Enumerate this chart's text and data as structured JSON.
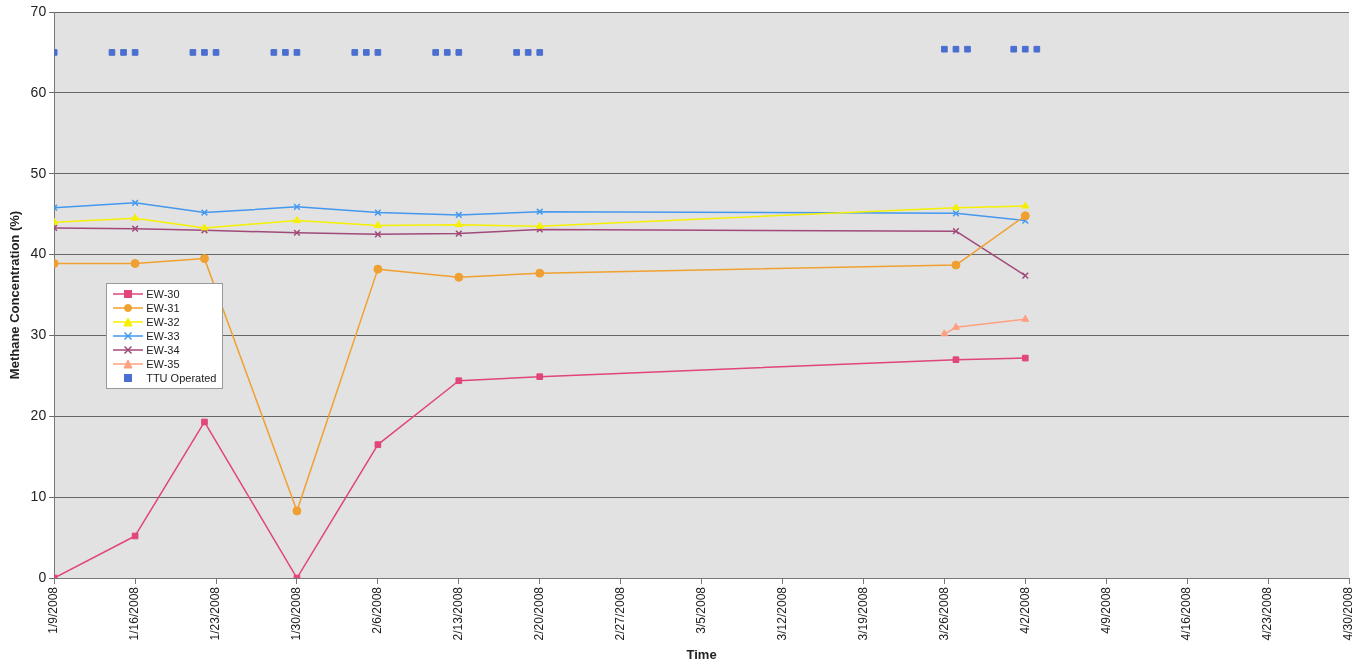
{
  "chart_data": {
    "type": "line",
    "xlabel": "Time",
    "ylabel": "Methane Concentration (%)",
    "xlim": [
      "2008-01-09",
      "2008-04-30"
    ],
    "xticks": [
      {
        "value": "2008-01-09",
        "label": "1/9/2008"
      },
      {
        "value": "2008-01-16",
        "label": "1/16/2008"
      },
      {
        "value": "2008-01-23",
        "label": "1/23/2008"
      },
      {
        "value": "2008-01-30",
        "label": "1/30/2008"
      },
      {
        "value": "2008-02-06",
        "label": "2/6/2008"
      },
      {
        "value": "2008-02-13",
        "label": "2/13/2008"
      },
      {
        "value": "2008-02-20",
        "label": "2/20/2008"
      },
      {
        "value": "2008-02-27",
        "label": "2/27/2008"
      },
      {
        "value": "2008-03-05",
        "label": "3/5/2008"
      },
      {
        "value": "2008-03-12",
        "label": "3/12/2008"
      },
      {
        "value": "2008-03-19",
        "label": "3/19/2008"
      },
      {
        "value": "2008-03-26",
        "label": "3/26/2008"
      },
      {
        "value": "2008-04-02",
        "label": "4/2/2008"
      },
      {
        "value": "2008-04-09",
        "label": "4/9/2008"
      },
      {
        "value": "2008-04-16",
        "label": "4/16/2008"
      },
      {
        "value": "2008-04-23",
        "label": "4/23/2008"
      },
      {
        "value": "2008-04-30",
        "label": "4/30/2008"
      }
    ],
    "ylim": [
      0,
      70
    ],
    "yticks": [
      0,
      10,
      20,
      30,
      40,
      50,
      60,
      70
    ],
    "grid": "y",
    "legend": "left",
    "line_style": "solid",
    "x": [
      "2008-01-09",
      "2008-01-16",
      "2008-01-22",
      "2008-01-30",
      "2008-02-06",
      "2008-02-13",
      "2008-02-20",
      "2008-03-27",
      "2008-04-02"
    ],
    "series": [
      {
        "name": "EW-30",
        "color": "#e0457b",
        "marker": "square",
        "values": [
          0,
          5.2,
          19.3,
          0,
          16.5,
          24.4,
          24.9,
          27,
          27.2
        ]
      },
      {
        "name": "EW-31",
        "color": "#f0a030",
        "marker": "circle",
        "values": [
          38.9,
          38.9,
          39.5,
          8.3,
          38.2,
          37.2,
          37.7,
          38.7,
          44.8
        ]
      },
      {
        "name": "EW-32",
        "color": "#f5f000",
        "marker": "triangle",
        "values": [
          44,
          44.5,
          43.3,
          44.2,
          43.6,
          43.7,
          43.5,
          45.8,
          46
        ]
      },
      {
        "name": "EW-33",
        "color": "#4499ee",
        "marker": "cross",
        "values": [
          45.8,
          46.4,
          45.2,
          45.9,
          45.2,
          44.9,
          45.3,
          45.1,
          44.2
        ]
      },
      {
        "name": "EW-34",
        "color": "#a04a7a",
        "marker": "cross",
        "values": [
          43.3,
          43.2,
          43,
          42.7,
          42.5,
          42.6,
          43.1,
          42.9,
          37.4
        ]
      },
      {
        "name": "EW-35",
        "color": "#ffa080",
        "marker": "triangle",
        "x": [
          "2008-03-26",
          "2008-03-27",
          "2008-04-02"
        ],
        "values": [
          30.2,
          31,
          32
        ]
      },
      {
        "name": "TTU Operated",
        "type": "scatter",
        "color": "#4a6fd0",
        "marker": "square",
        "x": [
          "2008-01-09",
          "2008-01-14",
          "2008-01-15",
          "2008-01-16",
          "2008-01-21",
          "2008-01-22",
          "2008-01-23",
          "2008-01-28",
          "2008-01-29",
          "2008-01-30",
          "2008-02-04",
          "2008-02-05",
          "2008-02-06",
          "2008-02-11",
          "2008-02-12",
          "2008-02-13",
          "2008-02-18",
          "2008-02-19",
          "2008-02-20",
          "2008-03-26",
          "2008-03-27",
          "2008-03-28",
          "2008-04-01",
          "2008-04-02",
          "2008-04-03"
        ],
        "values": [
          65,
          65,
          65,
          65,
          65,
          65,
          65,
          65,
          65,
          65,
          65,
          65,
          65,
          65,
          65,
          65,
          65,
          65,
          65,
          65.4,
          65.4,
          65.4,
          65.4,
          65.4,
          65.4
        ]
      }
    ]
  }
}
